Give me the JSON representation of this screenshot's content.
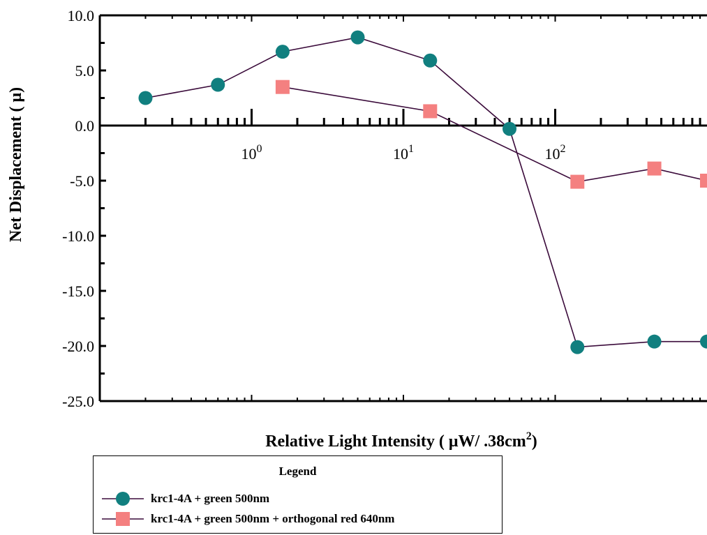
{
  "chart_data": {
    "type": "line",
    "xlabel": "Relative Light Intensity (  μW/ .38cm",
    "xlabel_sup": "2",
    "xlabel_close": ")",
    "ylabel": "Net Displacement ( μ)",
    "xscale": "log",
    "xlim": [
      0.1,
      1000
    ],
    "ylim": [
      -25,
      10
    ],
    "yticks": [
      "10.0",
      "5.0",
      "0.0",
      "-5.0",
      "-10.0",
      "-15.0",
      "-20.0",
      "-25.0"
    ],
    "ytick_values": [
      10,
      5,
      0,
      -5,
      -10,
      -15,
      -20,
      -25
    ],
    "xticks": [
      {
        "base": "10",
        "exp": "0",
        "value": 1
      },
      {
        "base": "10",
        "exp": "1",
        "value": 10
      },
      {
        "base": "10",
        "exp": "2",
        "value": 100
      }
    ],
    "series": [
      {
        "name": "krc1-4A + green 500nm",
        "marker": "circle",
        "color": "#117f7f",
        "line_color": "#3a0a3a",
        "x": [
          0.2,
          0.6,
          1.6,
          5,
          15,
          50,
          140,
          450,
          1000
        ],
        "y": [
          2.5,
          3.7,
          6.7,
          8.0,
          5.9,
          -0.3,
          -20.1,
          -19.6,
          -19.6
        ]
      },
      {
        "name": "krc1-4A + green 500nm + orthogonal red 640nm",
        "marker": "square",
        "color": "#f48080",
        "line_color": "#3a0a3a",
        "x": [
          1.6,
          15,
          140,
          450,
          1000
        ],
        "y": [
          3.5,
          1.3,
          -5.1,
          -3.9,
          -5.0
        ]
      }
    ]
  },
  "legend": {
    "title": "Legend",
    "entries": [
      {
        "label": "krc1-4A + green 500nm"
      },
      {
        "label": "krc1-4A + green 500nm + orthogonal red 640nm"
      }
    ]
  }
}
